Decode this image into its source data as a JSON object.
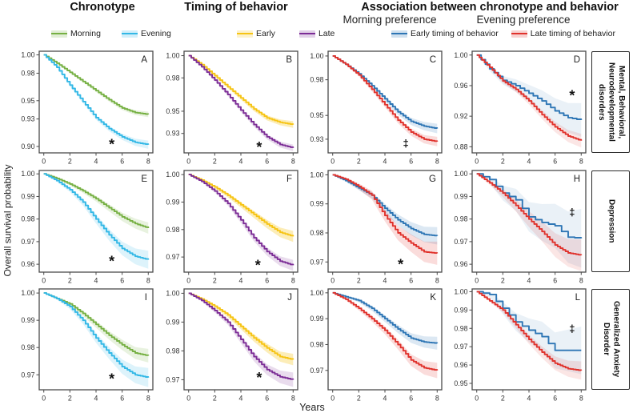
{
  "figure": {
    "col_headers": [
      {
        "label": "Chronotype"
      },
      {
        "label": "Timing of behavior"
      },
      {
        "label": "Association between chronotype and behavior"
      }
    ],
    "sub_headers": [
      "Morning preference",
      "Evening preference"
    ],
    "legends": [
      {
        "name": "chronotype",
        "items": [
          {
            "label": "Morning",
            "color": "#76b043"
          },
          {
            "label": "Evening",
            "color": "#33b8e6"
          }
        ]
      },
      {
        "name": "timing",
        "items": [
          {
            "label": "Early",
            "color": "#f6c414"
          },
          {
            "label": "Late",
            "color": "#7c2d96"
          }
        ]
      },
      {
        "name": "association",
        "items": [
          {
            "label": "Early timing of behavior",
            "color": "#2e76b5"
          },
          {
            "label": "Late timing of behavior",
            "color": "#e0322c"
          }
        ]
      }
    ],
    "ylabel": "Overall survival probability",
    "xlabel": "Years",
    "row_labels": [
      "Mental, Behavioral, Neurodevelopmental disorders",
      "Depression",
      "Generalized Anxiety Disorder"
    ]
  },
  "chart_data": [
    {
      "id": "A",
      "row": 0,
      "col": 0,
      "type": "line",
      "x": [
        0,
        1,
        2,
        3,
        4,
        5,
        6,
        7,
        8
      ],
      "xticks": [
        0,
        2,
        4,
        6,
        8
      ],
      "yticks": [
        1.0,
        0.98,
        0.95,
        0.93,
        0.9
      ],
      "ytick_labels": [
        "1.00",
        "0.98",
        "0.95",
        "0.93",
        "0.90"
      ],
      "ylim": [
        0.893,
        1.004
      ],
      "xlim": [
        -0.35,
        8.35
      ],
      "series": [
        {
          "name": "Morning",
          "color": "#76b043",
          "ci": 0.003,
          "values": [
            1.0,
            0.991,
            0.981,
            0.971,
            0.961,
            0.951,
            0.942,
            0.937,
            0.935
          ]
        },
        {
          "name": "Evening",
          "color": "#33b8e6",
          "ci": 0.0045,
          "values": [
            1.0,
            0.9865,
            0.967,
            0.949,
            0.9315,
            0.9195,
            0.9105,
            0.9045,
            0.902
          ]
        }
      ],
      "annotation": {
        "symbol": "*",
        "x": 5.2,
        "y": 0.9065
      }
    },
    {
      "id": "B",
      "row": 0,
      "col": 1,
      "type": "line",
      "x": [
        0,
        1,
        2,
        3,
        4,
        5,
        6,
        7,
        8
      ],
      "xticks": [
        0,
        2,
        4,
        6,
        8
      ],
      "yticks": [
        1.0,
        0.98,
        0.95,
        0.93
      ],
      "ytick_labels": [
        "1.00",
        "0.98",
        "0.95",
        "0.93"
      ],
      "ylim": [
        0.9125,
        1.004
      ],
      "xlim": [
        -0.35,
        8.35
      ],
      "series": [
        {
          "name": "Early",
          "color": "#f6c414",
          "ci": 0.003,
          "band_alpha": 0.3,
          "values": [
            1.0,
            0.992,
            0.982,
            0.972,
            0.962,
            0.952,
            0.944,
            0.94,
            0.938
          ]
        },
        {
          "name": "Late",
          "color": "#7c2d96",
          "ci": 0.003,
          "values": [
            1.0,
            0.99,
            0.978,
            0.965,
            0.951,
            0.938,
            0.927,
            0.92,
            0.917
          ]
        }
      ],
      "annotation": {
        "symbol": "*",
        "x": 5.4,
        "y": 0.921
      }
    },
    {
      "id": "C",
      "row": 0,
      "col": 2,
      "type": "line",
      "x": [
        0,
        1,
        2,
        3,
        4,
        5,
        6,
        7,
        8
      ],
      "xticks": [
        0,
        2,
        4,
        6,
        8
      ],
      "yticks": [
        1.0,
        0.98,
        0.95,
        0.93
      ],
      "ytick_labels": [
        "1.00",
        "0.98",
        "0.95",
        "0.93"
      ],
      "ylim": [
        0.9185,
        1.004
      ],
      "xlim": [
        -0.35,
        8.35
      ],
      "series": [
        {
          "name": "Early timing of behavior",
          "color": "#2e76b5",
          "ci": 0.004,
          "values": [
            1.0,
            0.993,
            0.985,
            0.975,
            0.964,
            0.953,
            0.945,
            0.941,
            0.939
          ]
        },
        {
          "name": "Late timing of behavior",
          "color": "#e0322c",
          "ci": 0.004,
          "values": [
            1.0,
            0.993,
            0.984,
            0.972,
            0.959,
            0.946,
            0.936,
            0.93,
            0.928
          ]
        }
      ],
      "annotation": {
        "symbol": "‡",
        "x": 5.6,
        "y": 0.9265
      }
    },
    {
      "id": "D",
      "row": 0,
      "col": 3,
      "type": "line",
      "x": [
        0,
        1,
        2,
        3,
        4,
        5,
        6,
        7,
        8
      ],
      "xticks": [
        0,
        2,
        4,
        6,
        8
      ],
      "yticks": [
        1.0,
        0.96,
        0.92,
        0.88
      ],
      "ytick_labels": [
        "1.00",
        "0.96",
        "0.92",
        "0.88"
      ],
      "ylim": [
        0.872,
        1.005
      ],
      "xlim": [
        -0.35,
        8.35
      ],
      "series": [
        {
          "name": "Early timing of behavior",
          "color": "#2e76b5",
          "ci": 0.022,
          "band_alpha": 0.1,
          "steps": 3,
          "values": [
            1.0,
            0.982,
            0.967,
            0.96,
            0.95,
            0.94,
            0.927,
            0.918,
            0.915
          ]
        },
        {
          "name": "Late timing of behavior",
          "color": "#e0322c",
          "ci": 0.009,
          "band_alpha": 0.12,
          "values": [
            1.0,
            0.984,
            0.966,
            0.955,
            0.94,
            0.922,
            0.906,
            0.894,
            0.888
          ]
        }
      ],
      "annotation": {
        "symbol": "*",
        "x": 7.3,
        "y": 0.952
      }
    },
    {
      "id": "E",
      "row": 1,
      "col": 0,
      "type": "line",
      "x": [
        0,
        1,
        2,
        3,
        4,
        5,
        6,
        7,
        8
      ],
      "xticks": [
        0,
        2,
        4,
        6,
        8
      ],
      "yticks": [
        1.0,
        0.99,
        0.98,
        0.97,
        0.96
      ],
      "ytick_labels": [
        "1.00",
        "0.99",
        "0.98",
        "0.97",
        "0.96"
      ],
      "ylim": [
        0.9565,
        1.0015
      ],
      "xlim": [
        -0.35,
        8.35
      ],
      "series": [
        {
          "name": "Morning",
          "color": "#76b043",
          "ci": 0.0025,
          "values": [
            1.0,
            0.998,
            0.9955,
            0.9925,
            0.989,
            0.985,
            0.981,
            0.978,
            0.976
          ]
        },
        {
          "name": "Evening",
          "color": "#33b8e6",
          "ci": 0.004,
          "values": [
            1.0,
            0.997,
            0.993,
            0.9875,
            0.98,
            0.973,
            0.967,
            0.9635,
            0.962
          ]
        }
      ],
      "annotation": {
        "symbol": "*",
        "x": 5.2,
        "y": 0.963
      }
    },
    {
      "id": "F",
      "row": 1,
      "col": 1,
      "type": "line",
      "x": [
        0,
        1,
        2,
        3,
        4,
        5,
        6,
        7,
        8
      ],
      "xticks": [
        0,
        2,
        4,
        6,
        8
      ],
      "yticks": [
        1.0,
        0.99,
        0.98,
        0.97
      ],
      "ytick_labels": [
        "1.00",
        "0.99",
        "0.98",
        "0.97"
      ],
      "ylim": [
        0.9645,
        1.0015
      ],
      "xlim": [
        -0.35,
        8.35
      ],
      "series": [
        {
          "name": "Early",
          "color": "#f6c414",
          "ci": 0.002,
          "band_alpha": 0.3,
          "values": [
            1.0,
            0.998,
            0.9955,
            0.9925,
            0.989,
            0.9855,
            0.982,
            0.979,
            0.9775
          ]
        },
        {
          "name": "Late",
          "color": "#7c2d96",
          "ci": 0.002,
          "values": [
            1.0,
            0.9975,
            0.994,
            0.9895,
            0.9835,
            0.977,
            0.972,
            0.9685,
            0.967
          ]
        }
      ],
      "annotation": {
        "symbol": "*",
        "x": 5.3,
        "y": 0.9685
      }
    },
    {
      "id": "G",
      "row": 1,
      "col": 2,
      "type": "line",
      "x": [
        0,
        1,
        2,
        3,
        4,
        5,
        6,
        7,
        8
      ],
      "xticks": [
        0,
        2,
        4,
        6,
        8
      ],
      "yticks": [
        1.0,
        0.99,
        0.98,
        0.97
      ],
      "ytick_labels": [
        "1.00",
        "0.99",
        "0.98",
        "0.97"
      ],
      "ylim": [
        0.9665,
        1.0015
      ],
      "xlim": [
        -0.35,
        8.35
      ],
      "series": [
        {
          "name": "Early timing of behavior",
          "color": "#2e76b5",
          "ci": 0.003,
          "values": [
            1.0,
            0.998,
            0.9955,
            0.993,
            0.9885,
            0.9845,
            0.9815,
            0.9795,
            0.979
          ]
        },
        {
          "name": "Late timing of behavior",
          "color": "#e0322c",
          "ci": 0.004,
          "values": [
            1.0,
            0.9985,
            0.996,
            0.993,
            0.986,
            0.98,
            0.9765,
            0.9735,
            0.973
          ]
        }
      ],
      "annotation": {
        "symbol": "*",
        "x": 5.2,
        "y": 0.9705
      }
    },
    {
      "id": "H",
      "row": 1,
      "col": 3,
      "type": "line",
      "x": [
        0,
        1,
        2,
        3,
        4,
        5,
        6,
        7,
        8
      ],
      "xticks": [
        0,
        2,
        4,
        6,
        8
      ],
      "yticks": [
        1.0,
        0.99,
        0.98,
        0.97,
        0.96
      ],
      "ytick_labels": [
        "1.00",
        "0.99",
        "0.98",
        "0.97",
        "0.96"
      ],
      "ylim": [
        0.9565,
        1.0015
      ],
      "xlim": [
        -0.35,
        8.35
      ],
      "series": [
        {
          "name": "Early timing of behavior",
          "color": "#2e76b5",
          "ci": 0.013,
          "band_alpha": 0.1,
          "steps": 2,
          "values": [
            1.0,
            0.9975,
            0.9915,
            0.9885,
            0.981,
            0.9785,
            0.977,
            0.972,
            0.9715
          ]
        },
        {
          "name": "Late timing of behavior",
          "color": "#e0322c",
          "ci": 0.007,
          "band_alpha": 0.12,
          "values": [
            1.0,
            0.996,
            0.9915,
            0.986,
            0.98,
            0.9745,
            0.9685,
            0.965,
            0.964
          ]
        }
      ],
      "annotation": {
        "symbol": "‡",
        "x": 7.3,
        "y": 0.983
      }
    },
    {
      "id": "I",
      "row": 2,
      "col": 0,
      "type": "line",
      "x": [
        0,
        1,
        2,
        3,
        4,
        5,
        6,
        7,
        8
      ],
      "xticks": [
        0,
        2,
        4,
        6,
        8
      ],
      "yticks": [
        1.0,
        0.99,
        0.98,
        0.97
      ],
      "ytick_labels": [
        "1.00",
        "0.99",
        "0.98",
        "0.97"
      ],
      "ylim": [
        0.9645,
        1.0015
      ],
      "xlim": [
        -0.35,
        8.35
      ],
      "series": [
        {
          "name": "Morning",
          "color": "#76b043",
          "ci": 0.0025,
          "values": [
            1.0,
            0.998,
            0.996,
            0.9925,
            0.9885,
            0.9845,
            0.981,
            0.978,
            0.977
          ]
        },
        {
          "name": "Evening",
          "color": "#33b8e6",
          "ci": 0.0035,
          "values": [
            1.0,
            0.998,
            0.995,
            0.99,
            0.9835,
            0.978,
            0.973,
            0.97,
            0.969
          ]
        }
      ],
      "annotation": {
        "symbol": "*",
        "x": 5.2,
        "y": 0.97
      }
    },
    {
      "id": "J",
      "row": 2,
      "col": 1,
      "type": "line",
      "x": [
        0,
        1,
        2,
        3,
        4,
        5,
        6,
        7,
        8
      ],
      "xticks": [
        0,
        2,
        4,
        6,
        8
      ],
      "yticks": [
        1.0,
        0.99,
        0.98,
        0.97
      ],
      "ytick_labels": [
        "1.00",
        "0.99",
        "0.98",
        "0.97"
      ],
      "ylim": [
        0.9665,
        1.0015
      ],
      "xlim": [
        -0.35,
        8.35
      ],
      "series": [
        {
          "name": "Early",
          "color": "#f6c414",
          "ci": 0.002,
          "band_alpha": 0.3,
          "values": [
            1.0,
            0.998,
            0.9955,
            0.9925,
            0.9885,
            0.9845,
            0.981,
            0.978,
            0.977
          ]
        },
        {
          "name": "Late",
          "color": "#7c2d96",
          "ci": 0.0025,
          "values": [
            1.0,
            0.9975,
            0.994,
            0.99,
            0.984,
            0.978,
            0.9735,
            0.971,
            0.97
          ]
        }
      ],
      "annotation": {
        "symbol": "*",
        "x": 5.4,
        "y": 0.972
      }
    },
    {
      "id": "K",
      "row": 2,
      "col": 2,
      "type": "line",
      "x": [
        0,
        1,
        2,
        3,
        4,
        5,
        6,
        7,
        8
      ],
      "xticks": [
        0,
        2,
        4,
        6,
        8
      ],
      "yticks": [
        1.0,
        0.99,
        0.98,
        0.97
      ],
      "ytick_labels": [
        "1.00",
        "0.99",
        "0.98",
        "0.97"
      ],
      "ylim": [
        0.9625,
        1.0015
      ],
      "xlim": [
        -0.35,
        8.35
      ],
      "series": [
        {
          "name": "Early timing of behavior",
          "color": "#2e76b5",
          "ci": 0.0025,
          "values": [
            1.0,
            0.9985,
            0.997,
            0.994,
            0.99,
            0.986,
            0.9825,
            0.981,
            0.9805
          ]
        },
        {
          "name": "Late timing of behavior",
          "color": "#e0322c",
          "ci": 0.003,
          "values": [
            1.0,
            0.9975,
            0.994,
            0.99,
            0.9855,
            0.98,
            0.974,
            0.971,
            0.97
          ]
        }
      ],
      "annotation": null
    },
    {
      "id": "L",
      "row": 2,
      "col": 3,
      "type": "line",
      "x": [
        0,
        1,
        2,
        3,
        4,
        5,
        6,
        7,
        8
      ],
      "xticks": [
        0,
        2,
        4,
        6,
        8
      ],
      "yticks": [
        1.0,
        0.99,
        0.98,
        0.97,
        0.96,
        0.95
      ],
      "ytick_labels": [
        "1.00",
        "0.99",
        "0.98",
        "0.97",
        "0.96",
        "0.95"
      ],
      "ylim": [
        0.9465,
        1.0015
      ],
      "xlim": [
        -0.35,
        8.35
      ],
      "series": [
        {
          "name": "Early timing of behavior",
          "color": "#2e76b5",
          "ci": 0.013,
          "band_alpha": 0.1,
          "steps": 2,
          "values": [
            1.0,
            0.9985,
            0.991,
            0.9835,
            0.979,
            0.9755,
            0.968,
            0.968,
            0.968
          ]
        },
        {
          "name": "Late timing of behavior",
          "color": "#e0322c",
          "ci": 0.005,
          "band_alpha": 0.12,
          "values": [
            1.0,
            0.995,
            0.99,
            0.982,
            0.974,
            0.967,
            0.961,
            0.958,
            0.957
          ]
        }
      ],
      "annotation": {
        "symbol": "‡",
        "x": 7.3,
        "y": 0.98
      }
    }
  ]
}
